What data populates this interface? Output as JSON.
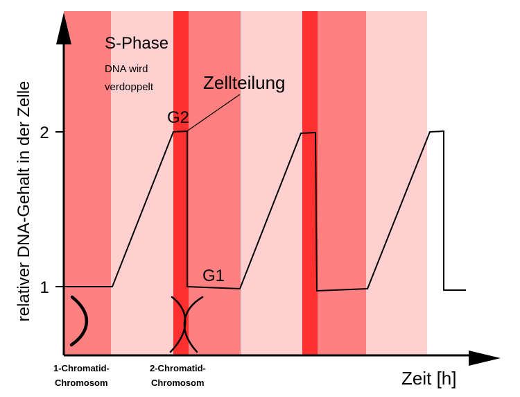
{
  "axes": {
    "y_label": "relativer DNA-Gehalt in der Zelle",
    "x_label": "Zeit [h]",
    "y_ticks": [
      "1",
      "2"
    ]
  },
  "phase_labels": {
    "s_phase_title": "S-Phase",
    "s_phase_desc_line1": "DNA wird",
    "s_phase_desc_line2": "verdoppelt",
    "g2": "G2",
    "g1": "G1",
    "cell_division": "Zellteilung"
  },
  "chromosome_labels": {
    "one_chromatid_line1": "1-Chromatid-",
    "one_chromatid_line2": "Chromosom",
    "two_chromatid_line1": "2-Chromatid-",
    "two_chromatid_line2": "Chromosom"
  },
  "colors": {
    "g1_band": "#ff8080",
    "s_band": "#ffd0d0",
    "mitosis_band": "#ff3030",
    "line": "#000000"
  },
  "cycle_sequence": [
    "G1",
    "S",
    "G2/M",
    "G1",
    "S",
    "G2/M",
    "G1",
    "S"
  ]
}
